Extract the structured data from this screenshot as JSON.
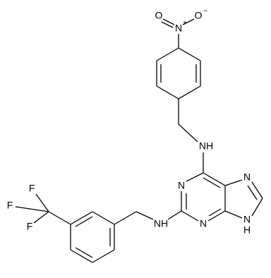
{
  "molecule": {
    "atoms": [
      {
        "label": "O"
      },
      {
        "label": "N"
      },
      {
        "label": "O"
      },
      {
        "label": "NH"
      },
      {
        "label": "N"
      },
      {
        "label": "N"
      },
      {
        "label": "N"
      },
      {
        "label": "N"
      },
      {
        "label": "H"
      },
      {
        "label": "NH"
      },
      {
        "label": "F"
      },
      {
        "label": "F"
      },
      {
        "label": "F"
      }
    ],
    "charges": [
      "+",
      "−"
    ]
  }
}
